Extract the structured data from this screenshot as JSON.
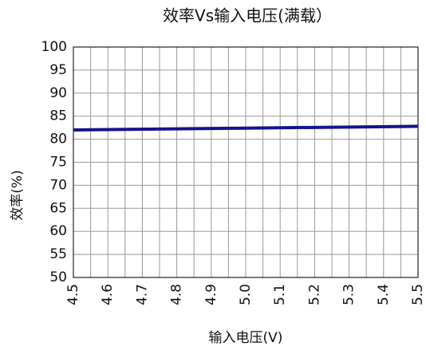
{
  "chart_data": {
    "type": "line",
    "title": "效率Vs输入电压(满载）",
    "x_label": "输入电压(V)",
    "y_label": "效率(%)",
    "x": [
      4.5,
      5.0,
      5.5
    ],
    "series": [
      {
        "name": "效率",
        "color": "#14148c",
        "values": [
          82.0,
          82.4,
          82.8
        ]
      }
    ],
    "xlim": [
      4.5,
      5.5
    ],
    "xticks": [
      4.5,
      4.6,
      4.7,
      4.8,
      4.9,
      {
        "value": 5,
        "label": "5.0"
      },
      5.1,
      5.2,
      5.3,
      5.4,
      5.5
    ],
    "xminorticks": [
      4.55,
      4.65,
      4.75,
      4.85,
      4.95,
      5.05,
      5.15,
      5.25,
      5.35,
      5.45
    ],
    "ylim": [
      50,
      100
    ],
    "yticks": [
      50,
      55,
      60,
      65,
      70,
      75,
      80,
      85,
      90,
      95,
      100
    ],
    "grid": true
  }
}
